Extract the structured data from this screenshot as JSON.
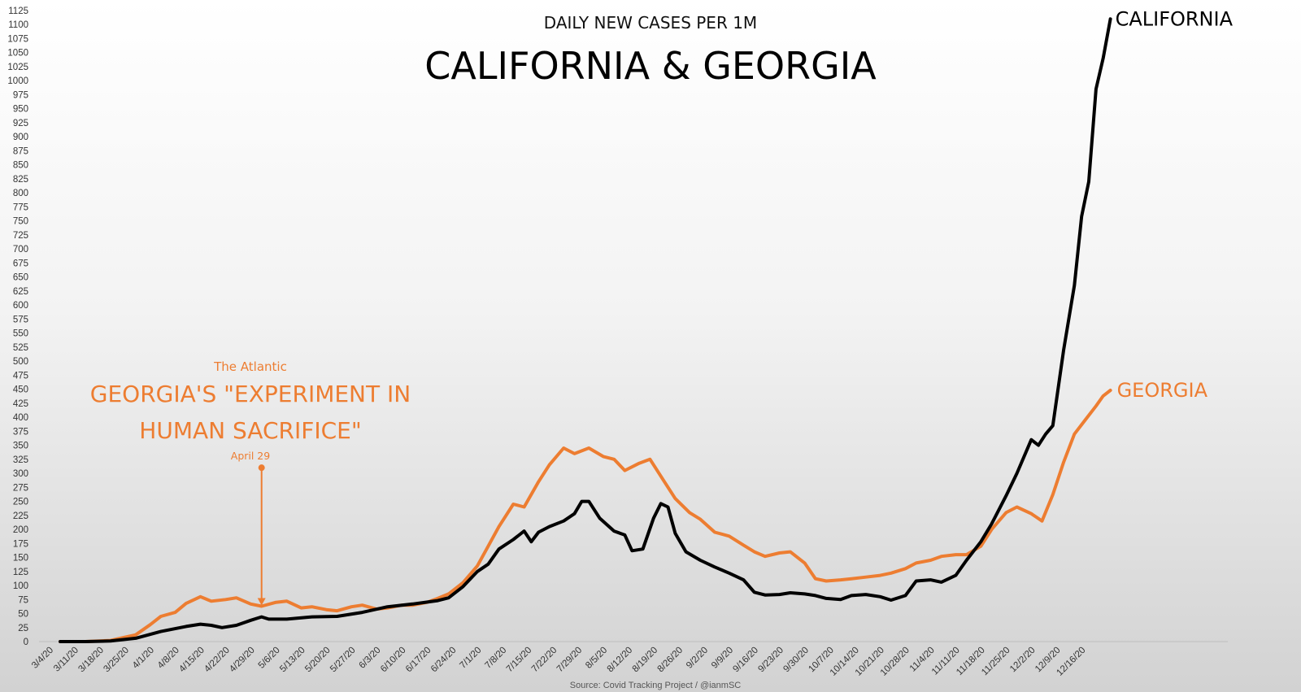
{
  "chart_data": {
    "type": "line",
    "subtitle": "DAILY NEW CASES PER 1M",
    "title": "CALIFORNIA & GEORGIA",
    "source": "Source: Covid Tracking Project / @ianmSC",
    "ylim": [
      0,
      1125
    ],
    "ystep": 25,
    "x_date_range": [
      "3/4/20",
      "12/22/20"
    ],
    "x_tick_labels": [
      "3/4/20",
      "3/11/20",
      "3/18/20",
      "3/25/20",
      "4/1/20",
      "4/8/20",
      "4/15/20",
      "4/22/20",
      "4/29/20",
      "5/6/20",
      "5/13/20",
      "5/20/20",
      "5/27/20",
      "6/3/20",
      "6/10/20",
      "6/17/20",
      "6/24/20",
      "7/1/20",
      "7/8/20",
      "7/15/20",
      "7/22/20",
      "7/29/20",
      "8/5/20",
      "8/12/20",
      "8/19/20",
      "8/26/20",
      "9/2/20",
      "9/9/20",
      "9/16/20",
      "9/23/20",
      "9/30/20",
      "10/7/20",
      "10/14/20",
      "10/21/20",
      "10/28/20",
      "11/4/20",
      "11/11/20",
      "11/18/20",
      "11/25/20",
      "12/2/20",
      "12/9/20",
      "12/16/20"
    ],
    "grid": false,
    "colors": {
      "california": "#000000",
      "georgia": "#ED7D31"
    },
    "series": [
      {
        "name": "CALIFORNIA",
        "points": [
          [
            "3/4/20",
            0
          ],
          [
            "3/11/20",
            0
          ],
          [
            "3/18/20",
            1
          ],
          [
            "3/25/20",
            6
          ],
          [
            "4/1/20",
            18
          ],
          [
            "4/8/20",
            27
          ],
          [
            "4/12/20",
            31
          ],
          [
            "4/15/20",
            29
          ],
          [
            "4/18/20",
            25
          ],
          [
            "4/22/20",
            29
          ],
          [
            "4/26/20",
            38
          ],
          [
            "4/29/20",
            44
          ],
          [
            "5/1/20",
            40
          ],
          [
            "5/6/20",
            40
          ],
          [
            "5/13/20",
            44
          ],
          [
            "5/20/20",
            45
          ],
          [
            "5/27/20",
            52
          ],
          [
            "6/3/20",
            62
          ],
          [
            "6/10/20",
            67
          ],
          [
            "6/17/20",
            73
          ],
          [
            "6/20/20",
            78
          ],
          [
            "6/24/20",
            98
          ],
          [
            "6/28/20",
            125
          ],
          [
            "7/1/20",
            138
          ],
          [
            "7/4/20",
            165
          ],
          [
            "7/8/20",
            182
          ],
          [
            "7/11/20",
            197
          ],
          [
            "7/13/20",
            178
          ],
          [
            "7/15/20",
            195
          ],
          [
            "7/18/20",
            205
          ],
          [
            "7/22/20",
            215
          ],
          [
            "7/25/20",
            228
          ],
          [
            "7/27/20",
            250
          ],
          [
            "7/29/20",
            250
          ],
          [
            "8/1/20",
            220
          ],
          [
            "8/5/20",
            197
          ],
          [
            "8/8/20",
            190
          ],
          [
            "8/10/20",
            162
          ],
          [
            "8/13/20",
            165
          ],
          [
            "8/16/20",
            220
          ],
          [
            "8/18/20",
            246
          ],
          [
            "8/20/20",
            240
          ],
          [
            "8/22/20",
            193
          ],
          [
            "8/25/20",
            160
          ],
          [
            "8/29/20",
            145
          ],
          [
            "9/2/20",
            133
          ],
          [
            "9/6/20",
            122
          ],
          [
            "9/10/20",
            110
          ],
          [
            "9/13/20",
            88
          ],
          [
            "9/16/20",
            83
          ],
          [
            "9/20/20",
            84
          ],
          [
            "9/23/20",
            87
          ],
          [
            "9/27/20",
            85
          ],
          [
            "9/30/20",
            82
          ],
          [
            "10/3/20",
            77
          ],
          [
            "10/7/20",
            75
          ],
          [
            "10/10/20",
            82
          ],
          [
            "10/14/20",
            84
          ],
          [
            "10/18/20",
            80
          ],
          [
            "10/21/20",
            74
          ],
          [
            "10/25/20",
            82
          ],
          [
            "10/28/20",
            108
          ],
          [
            "11/1/20",
            110
          ],
          [
            "11/4/20",
            106
          ],
          [
            "11/8/20",
            118
          ],
          [
            "11/11/20",
            145
          ],
          [
            "11/15/20",
            178
          ],
          [
            "11/18/20",
            210
          ],
          [
            "11/22/20",
            260
          ],
          [
            "11/25/20",
            300
          ],
          [
            "11/29/20",
            360
          ],
          [
            "12/1/20",
            350
          ],
          [
            "12/3/20",
            370
          ],
          [
            "12/5/20",
            385
          ],
          [
            "12/8/20",
            520
          ],
          [
            "12/11/20",
            635
          ],
          [
            "12/13/20",
            758
          ],
          [
            "12/15/20",
            820
          ],
          [
            "12/17/20",
            985
          ],
          [
            "12/19/20",
            1040
          ],
          [
            "12/21/20",
            1110
          ]
        ]
      },
      {
        "name": "GEORGIA",
        "points": [
          [
            "3/4/20",
            0
          ],
          [
            "3/11/20",
            0
          ],
          [
            "3/18/20",
            2
          ],
          [
            "3/25/20",
            12
          ],
          [
            "3/29/20",
            30
          ],
          [
            "4/1/20",
            45
          ],
          [
            "4/5/20",
            52
          ],
          [
            "4/8/20",
            68
          ],
          [
            "4/12/20",
            80
          ],
          [
            "4/15/20",
            72
          ],
          [
            "4/19/20",
            75
          ],
          [
            "4/22/20",
            78
          ],
          [
            "4/26/20",
            67
          ],
          [
            "4/29/20",
            63
          ],
          [
            "5/3/20",
            70
          ],
          [
            "5/6/20",
            72
          ],
          [
            "5/10/20",
            60
          ],
          [
            "5/13/20",
            62
          ],
          [
            "5/17/20",
            57
          ],
          [
            "5/20/20",
            55
          ],
          [
            "5/24/20",
            62
          ],
          [
            "5/27/20",
            65
          ],
          [
            "5/31/20",
            58
          ],
          [
            "6/3/20",
            60
          ],
          [
            "6/7/20",
            65
          ],
          [
            "6/10/20",
            65
          ],
          [
            "6/14/20",
            70
          ],
          [
            "6/17/20",
            77
          ],
          [
            "6/20/20",
            85
          ],
          [
            "6/24/20",
            105
          ],
          [
            "6/28/20",
            135
          ],
          [
            "7/1/20",
            170
          ],
          [
            "7/4/20",
            205
          ],
          [
            "7/8/20",
            245
          ],
          [
            "7/11/20",
            240
          ],
          [
            "7/15/20",
            285
          ],
          [
            "7/18/20",
            315
          ],
          [
            "7/22/20",
            345
          ],
          [
            "7/25/20",
            335
          ],
          [
            "7/29/20",
            345
          ],
          [
            "8/2/20",
            330
          ],
          [
            "8/5/20",
            325
          ],
          [
            "8/8/20",
            305
          ],
          [
            "8/12/20",
            318
          ],
          [
            "8/15/20",
            325
          ],
          [
            "8/19/20",
            285
          ],
          [
            "8/22/20",
            255
          ],
          [
            "8/26/20",
            230
          ],
          [
            "8/29/20",
            218
          ],
          [
            "9/2/20",
            195
          ],
          [
            "9/6/20",
            188
          ],
          [
            "9/10/20",
            172
          ],
          [
            "9/13/20",
            160
          ],
          [
            "9/16/20",
            152
          ],
          [
            "9/20/20",
            158
          ],
          [
            "9/23/20",
            160
          ],
          [
            "9/27/20",
            140
          ],
          [
            "9/30/20",
            112
          ],
          [
            "10/3/20",
            108
          ],
          [
            "10/7/20",
            110
          ],
          [
            "10/10/20",
            112
          ],
          [
            "10/14/20",
            115
          ],
          [
            "10/18/20",
            118
          ],
          [
            "10/21/20",
            122
          ],
          [
            "10/25/20",
            130
          ],
          [
            "10/28/20",
            140
          ],
          [
            "11/1/20",
            145
          ],
          [
            "11/4/20",
            152
          ],
          [
            "11/8/20",
            155
          ],
          [
            "11/11/20",
            155
          ],
          [
            "11/15/20",
            170
          ],
          [
            "11/18/20",
            200
          ],
          [
            "11/22/20",
            230
          ],
          [
            "11/25/20",
            240
          ],
          [
            "11/29/20",
            228
          ],
          [
            "12/2/20",
            215
          ],
          [
            "12/5/20",
            262
          ],
          [
            "12/8/20",
            320
          ],
          [
            "12/11/20",
            370
          ],
          [
            "12/14/20",
            395
          ],
          [
            "12/17/20",
            420
          ],
          [
            "12/19/20",
            438
          ],
          [
            "12/21/20",
            448
          ]
        ]
      }
    ],
    "annotation": {
      "source": "The Atlantic",
      "headline_line1": "GEORGIA'S \"EXPERIMENT IN",
      "headline_line2": "HUMAN SACRIFICE\"",
      "date_label": "April 29",
      "x": "4/29/20",
      "y_from": 310,
      "y_to": 63
    }
  }
}
